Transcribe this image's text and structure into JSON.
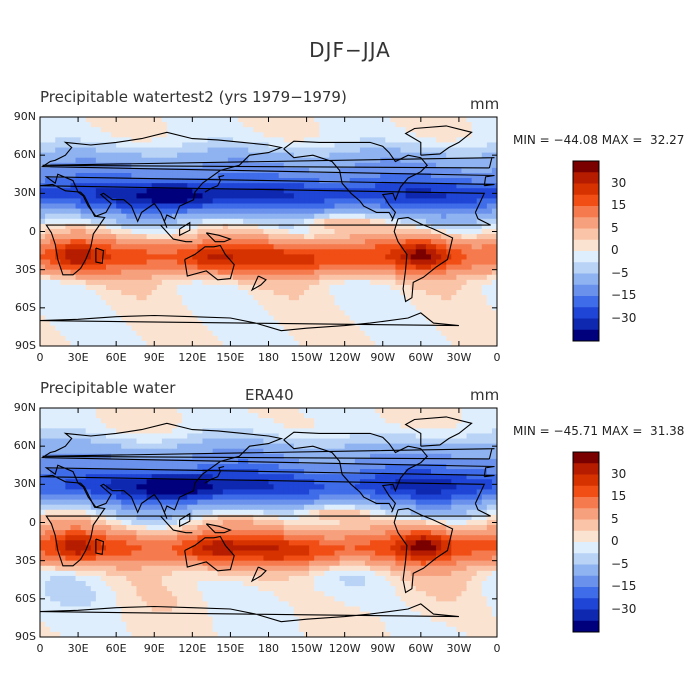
{
  "title": "DJF−JJA",
  "panels": [
    {
      "plot_title": "Precipitable watertest2 (yrs 1979−1979)",
      "mid_title": "",
      "units": "mm",
      "stats": "MIN = −44.08 MAX =  32.27"
    },
    {
      "plot_title": "Precipitable water",
      "mid_title": "ERA40",
      "units": "mm",
      "stats": "MIN = −45.71 MAX =  31.38"
    }
  ],
  "axes": {
    "y_ticks": [
      "90N",
      "60N",
      "30N",
      "0",
      "30S",
      "60S",
      "90S"
    ],
    "x_ticks": [
      "0",
      "30E",
      "60E",
      "90E",
      "120E",
      "150E",
      "180",
      "150W",
      "120W",
      "90W",
      "60W",
      "30W",
      "0"
    ]
  },
  "colorbar": {
    "labels": [
      "30",
      "15",
      "5",
      "0",
      "−5",
      "−15",
      "−30"
    ],
    "colors": [
      "#7a0000",
      "#b51c00",
      "#d63200",
      "#f04e14",
      "#f57a4e",
      "#f7a07d",
      "#f9c4a8",
      "#fbe3d2",
      "#dfeefc",
      "#b9d3f6",
      "#8fb3f0",
      "#6a91ec",
      "#3f6ce8",
      "#1f45d6",
      "#0f28b0",
      "#00007d"
    ]
  }
}
